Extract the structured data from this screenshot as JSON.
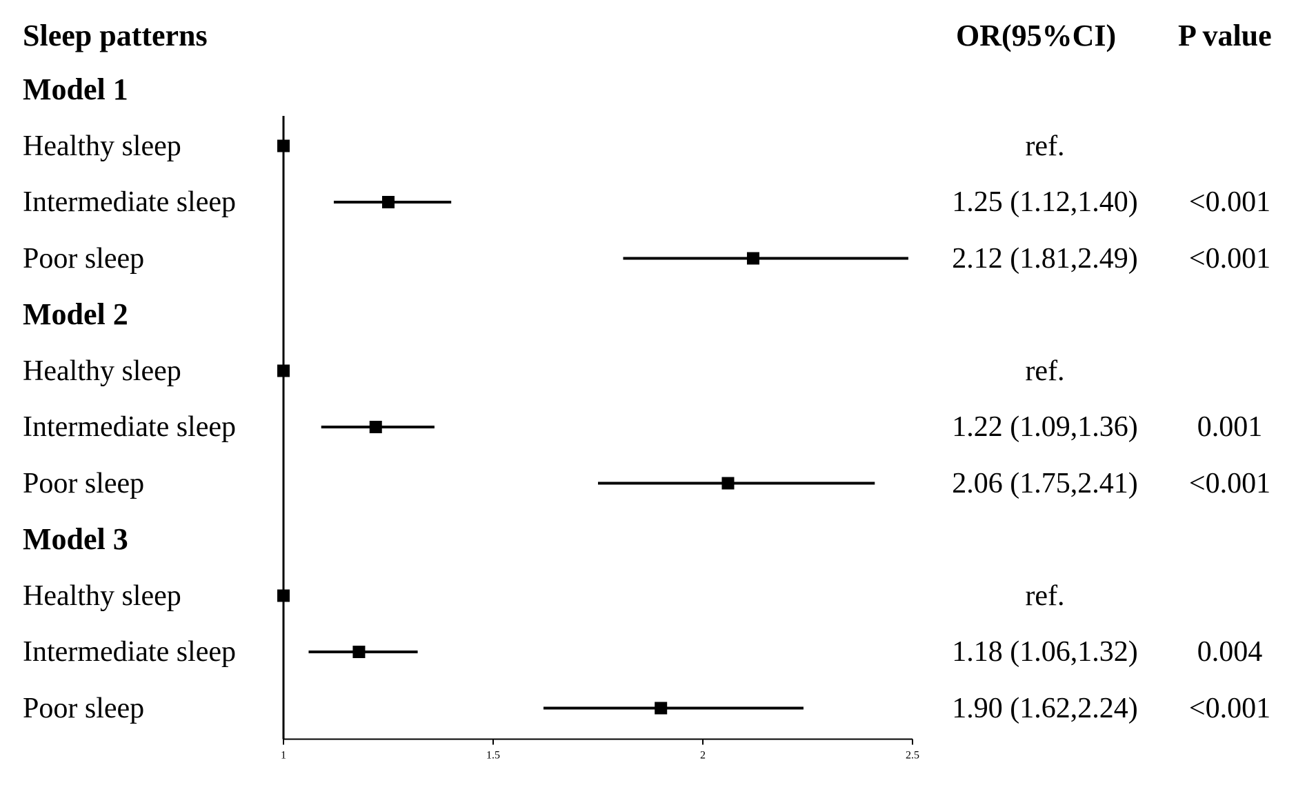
{
  "header": {
    "col_label": "Sleep patterns",
    "col_or": "OR(95%CI)",
    "col_p": "P value"
  },
  "chart_data": {
    "type": "forest",
    "columns": [
      "Sleep patterns",
      "OR(95%CI)",
      "P value"
    ],
    "xlim": [
      1,
      2.5
    ],
    "x_ticks": [
      1,
      1.5,
      2,
      2.5
    ],
    "x_tick_labels": [
      "1",
      "1.5",
      "2",
      "2.5"
    ],
    "reference_line": 1,
    "groups": [
      {
        "name": "Model 1",
        "rows": [
          {
            "label": "Healthy sleep",
            "or": 1.0,
            "lo": null,
            "hi": null,
            "ci_text": "ref.",
            "p": ""
          },
          {
            "label": "Intermediate sleep",
            "or": 1.25,
            "lo": 1.12,
            "hi": 1.4,
            "ci_text": "1.25 (1.12,1.40)",
            "p": "<0.001"
          },
          {
            "label": "Poor sleep",
            "or": 2.12,
            "lo": 1.81,
            "hi": 2.49,
            "ci_text": "2.12 (1.81,2.49)",
            "p": "<0.001"
          }
        ]
      },
      {
        "name": "Model 2",
        "rows": [
          {
            "label": "Healthy sleep",
            "or": 1.0,
            "lo": null,
            "hi": null,
            "ci_text": "ref.",
            "p": ""
          },
          {
            "label": "Intermediate sleep",
            "or": 1.22,
            "lo": 1.09,
            "hi": 1.36,
            "ci_text": "1.22 (1.09,1.36)",
            "p": "0.001"
          },
          {
            "label": "Poor sleep",
            "or": 2.06,
            "lo": 1.75,
            "hi": 2.41,
            "ci_text": "2.06 (1.75,2.41)",
            "p": "<0.001"
          }
        ]
      },
      {
        "name": "Model 3",
        "rows": [
          {
            "label": "Healthy sleep",
            "or": 1.0,
            "lo": null,
            "hi": null,
            "ci_text": "ref.",
            "p": ""
          },
          {
            "label": "Intermediate sleep",
            "or": 1.18,
            "lo": 1.06,
            "hi": 1.32,
            "ci_text": "1.18 (1.06,1.32)",
            "p": "0.004"
          },
          {
            "label": "Poor sleep",
            "or": 1.9,
            "lo": 1.62,
            "hi": 2.24,
            "ci_text": "1.90 (1.62,2.24)",
            "p": "<0.001"
          }
        ]
      }
    ],
    "colors": {
      "marker": "#000000",
      "line": "#000000"
    }
  }
}
